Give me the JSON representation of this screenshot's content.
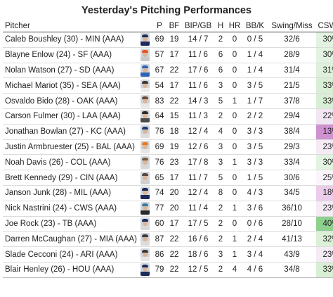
{
  "title": "Yesterday's Pitching Performances",
  "columns": [
    "Pitcher",
    "",
    "P",
    "BF",
    "BIP/GB",
    "H",
    "HR",
    "BB/K",
    "Swing/Miss",
    "CSW%"
  ],
  "rows": [
    {
      "pitcher": "Caleb Boushley (30) - MIN (AAA)",
      "p": "69",
      "bf": "19",
      "bip_gb": "14 / 7",
      "h": "2",
      "hr": "0",
      "bb_k": "0 / 5",
      "swing_miss": "32/6",
      "csw": "30%",
      "csw_bg": "#e3f3e1",
      "cap": "#1b2a5a",
      "jersey": "#1b2a5a"
    },
    {
      "pitcher": "Blayne Enlow (24) - SF (AAA)",
      "p": "57",
      "bf": "17",
      "bip_gb": "11 / 6",
      "h": "6",
      "hr": "0",
      "bb_k": "1 / 4",
      "swing_miss": "28/9",
      "csw": "30%",
      "csw_bg": "#e3f3e1",
      "cap": "#e8541f",
      "jersey": "#c9c9c9"
    },
    {
      "pitcher": "Nolan Watson (27) - SD (AAA)",
      "p": "67",
      "bf": "22",
      "bip_gb": "17 / 6",
      "h": "6",
      "hr": "0",
      "bb_k": "1 / 4",
      "swing_miss": "31/4",
      "csw": "31%",
      "csw_bg": "#dff1dc",
      "cap": "#2e63b5",
      "jersey": "#2e63b5"
    },
    {
      "pitcher": "Michael Mariot (35) - SEA (AAA)",
      "p": "54",
      "bf": "17",
      "bip_gb": "11 / 6",
      "h": "3",
      "hr": "0",
      "bb_k": "3 / 5",
      "swing_miss": "21/5",
      "csw": "33%",
      "csw_bg": "#d9efd5",
      "cap": "#3a3a3a",
      "jersey": "#ececec"
    },
    {
      "pitcher": "Osvaldo Bido (28) - OAK (AAA)",
      "p": "83",
      "bf": "22",
      "bip_gb": "14 / 3",
      "h": "5",
      "hr": "1",
      "bb_k": "1 / 7",
      "swing_miss": "37/8",
      "csw": "33%",
      "csw_bg": "#d9efd5",
      "cap": "#6b4a3a",
      "jersey": "#e8e8e8"
    },
    {
      "pitcher": "Carson Fulmer (30) - LAA (AAA)",
      "p": "64",
      "bf": "15",
      "bip_gb": "11 / 3",
      "h": "2",
      "hr": "0",
      "bb_k": "2 / 2",
      "swing_miss": "29/4",
      "csw": "22%",
      "csw_bg": "#f3e6f3",
      "cap": "#2a2a2a",
      "jersey": "#4a4a4a"
    },
    {
      "pitcher": "Jonathan Bowlan (27) - KC (AAA)",
      "p": "76",
      "bf": "18",
      "bip_gb": "12 / 4",
      "h": "4",
      "hr": "0",
      "bb_k": "3 / 3",
      "swing_miss": "38/4",
      "csw": "13%",
      "csw_bg": "#cf92cf",
      "cap": "#1e3a7a",
      "jersey": "#dddddd"
    },
    {
      "pitcher": "Justin Armbruester (25) - BAL (AAA)",
      "p": "69",
      "bf": "19",
      "bip_gb": "12 / 6",
      "h": "3",
      "hr": "0",
      "bb_k": "3 / 5",
      "swing_miss": "29/3",
      "csw": "23%",
      "csw_bg": "#f5ebf5",
      "cap": "#f07a1c",
      "jersey": "#e6e6e6"
    },
    {
      "pitcher": "Noah Davis (26) - COL (AAA)",
      "p": "76",
      "bf": "23",
      "bip_gb": "17 / 8",
      "h": "3",
      "hr": "1",
      "bb_k": "3 / 3",
      "swing_miss": "33/4",
      "csw": "30%",
      "csw_bg": "#e3f3e1",
      "cap": "#7a5a3a",
      "jersey": "#d8d8d8"
    },
    {
      "pitcher": "Brett Kennedy (29) - CIN (AAA)",
      "p": "65",
      "bf": "17",
      "bip_gb": "11 / 7",
      "h": "5",
      "hr": "0",
      "bb_k": "1 / 5",
      "swing_miss": "30/6",
      "csw": "25%",
      "csw_bg": "#faf5fa",
      "cap": "#5a4a40",
      "jersey": "#d0d0d0"
    },
    {
      "pitcher": "Janson Junk (28) - MIL (AAA)",
      "p": "74",
      "bf": "20",
      "bip_gb": "12 / 4",
      "h": "8",
      "hr": "0",
      "bb_k": "4 / 3",
      "swing_miss": "34/5",
      "csw": "18%",
      "csw_bg": "#ebcdeb",
      "cap": "#1b2a5a",
      "jersey": "#1b2a5a"
    },
    {
      "pitcher": "Nick Nastrini (24) - CWS (AAA)",
      "p": "77",
      "bf": "20",
      "bip_gb": "11 / 4",
      "h": "2",
      "hr": "1",
      "bb_k": "3 / 6",
      "swing_miss": "36/10",
      "csw": "23%",
      "csw_bg": "#f5ebf5",
      "cap": "#3a7aa0",
      "jersey": "#2a2a2a"
    },
    {
      "pitcher": "Joe Rock (23) - TB (AAA)",
      "p": "60",
      "bf": "17",
      "bip_gb": "17 / 5",
      "h": "2",
      "hr": "0",
      "bb_k": "0 / 6",
      "swing_miss": "28/10",
      "csw": "40%",
      "csw_bg": "#8fd08f",
      "cap": "#1b2a5a",
      "jersey": "#d8d8d8"
    },
    {
      "pitcher": "Darren McCaughan (27) - MIA (AAA)",
      "p": "87",
      "bf": "22",
      "bip_gb": "16 / 6",
      "h": "2",
      "hr": "1",
      "bb_k": "2 / 4",
      "swing_miss": "41/13",
      "csw": "32%",
      "csw_bg": "#dcf0d8",
      "cap": "#3a3a3a",
      "jersey": "#dcdcdc"
    },
    {
      "pitcher": "Slade Cecconi (24) - ARI (AAA)",
      "p": "86",
      "bf": "22",
      "bip_gb": "18 / 6",
      "h": "3",
      "hr": "1",
      "bb_k": "3 / 4",
      "swing_miss": "43/9",
      "csw": "23%",
      "csw_bg": "#f5ebf5",
      "cap": "#3a3a3a",
      "jersey": "#e6e6e6"
    },
    {
      "pitcher": "Blair Henley (26) - HOU (AAA)",
      "p": "79",
      "bf": "22",
      "bip_gb": "12 / 5",
      "h": "2",
      "hr": "4",
      "bb_k": "4 / 6",
      "swing_miss": "34/8",
      "csw": "33%",
      "csw_bg": "#d9efd5",
      "cap": "#1b2a5a",
      "jersey": "#1b2a5a"
    }
  ]
}
